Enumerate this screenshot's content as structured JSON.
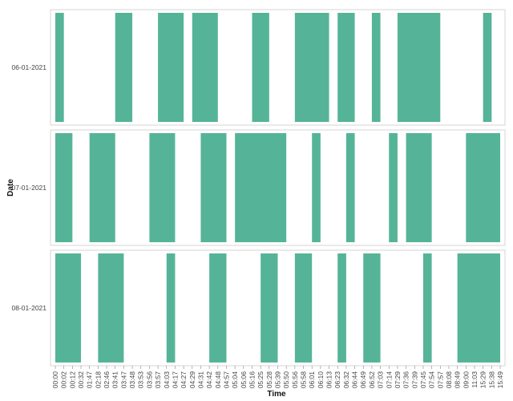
{
  "chart_data": {
    "type": "bar",
    "orientation": "horizontal-range",
    "xlabel": "Time",
    "ylabel": "Date",
    "grid": false,
    "legend": "none",
    "colors": {
      "bar": "#55b497",
      "panel_border": "#cccccc",
      "text": "#444444"
    },
    "x_ticks": [
      "00:00",
      "00:02",
      "00:12",
      "00:32",
      "01:47",
      "02:18",
      "02:46",
      "03:41",
      "03:47",
      "03:48",
      "03:53",
      "03:56",
      "03:57",
      "04:03",
      "04:17",
      "04:27",
      "04:29",
      "04:31",
      "04:42",
      "04:48",
      "04:57",
      "05:04",
      "05:06",
      "05:16",
      "05:25",
      "05:28",
      "05:39",
      "05:50",
      "05:56",
      "05:58",
      "06:01",
      "06:10",
      "06:13",
      "06:23",
      "06:32",
      "06:44",
      "06:49",
      "06:52",
      "07:03",
      "07:14",
      "07:29",
      "07:36",
      "07:39",
      "07:45",
      "07:54",
      "07:57",
      "08:08",
      "08:49",
      "09:00",
      "11:03",
      "15:29",
      "15:38",
      "15:49"
    ],
    "categories": [
      "06-01-2021",
      "07-01-2021",
      "08-01-2021"
    ],
    "series": [
      {
        "category": "06-01-2021",
        "intervals": [
          [
            "00:00",
            "00:02"
          ],
          [
            "03:41",
            "03:48"
          ],
          [
            "03:57",
            "04:27"
          ],
          [
            "04:29",
            "04:48"
          ],
          [
            "05:16",
            "05:28"
          ],
          [
            "05:56",
            "06:13"
          ],
          [
            "06:23",
            "06:44"
          ],
          [
            "06:52",
            "07:03"
          ],
          [
            "07:29",
            "07:57"
          ],
          [
            "15:29",
            "15:38"
          ]
        ]
      },
      {
        "category": "07-01-2021",
        "intervals": [
          [
            "00:00",
            "00:12"
          ],
          [
            "01:47",
            "03:41"
          ],
          [
            "03:56",
            "04:17"
          ],
          [
            "04:31",
            "04:57"
          ],
          [
            "05:04",
            "05:50"
          ],
          [
            "06:01",
            "06:10"
          ],
          [
            "06:32",
            "06:44"
          ],
          [
            "07:14",
            "07:29"
          ],
          [
            "07:36",
            "07:54"
          ],
          [
            "09:00",
            "15:49"
          ]
        ]
      },
      {
        "category": "08-01-2021",
        "intervals": [
          [
            "00:00",
            "00:32"
          ],
          [
            "02:18",
            "03:47"
          ],
          [
            "04:03",
            "04:17"
          ],
          [
            "04:42",
            "04:57"
          ],
          [
            "05:25",
            "05:39"
          ],
          [
            "05:56",
            "06:01"
          ],
          [
            "06:23",
            "06:32"
          ],
          [
            "06:49",
            "07:03"
          ],
          [
            "07:45",
            "07:54"
          ],
          [
            "08:49",
            "15:49"
          ]
        ]
      }
    ]
  }
}
